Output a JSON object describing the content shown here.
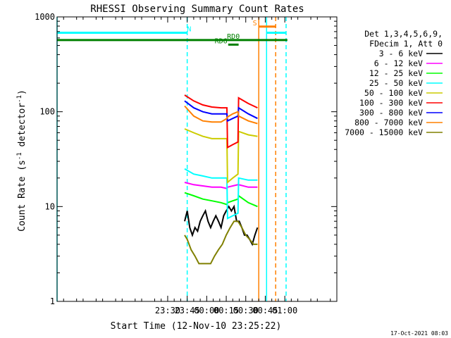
{
  "chart_data": {
    "type": "line",
    "title": "RHESSI Observing Summary Count Rates",
    "xlabel": "Start Time (12-Nov-10 23:25:22)",
    "ylabel": "Count Rate (s-1 detector-1)",
    "ylabel_parts": [
      "Count Rate (s",
      "-1",
      " detector",
      "-1",
      ")"
    ],
    "y_scale": "log",
    "ylim": [
      1,
      1000
    ],
    "xlim_minutes": [
      -115,
      100
    ],
    "y_ticks": [
      {
        "value": 1,
        "label": "1"
      },
      {
        "value": 10,
        "label": "10"
      },
      {
        "value": 100,
        "label": "100"
      },
      {
        "value": 1000,
        "label": "1000"
      }
    ],
    "x_ticks": [
      {
        "minutes": -30,
        "label": "23:30"
      },
      {
        "minutes": -15,
        "label": "23:45"
      },
      {
        "minutes": 0,
        "label": "00:00"
      },
      {
        "minutes": 15,
        "label": "00:15"
      },
      {
        "minutes": 30,
        "label": "00:30"
      },
      {
        "minutes": 45,
        "label": "00:45"
      },
      {
        "minutes": 60,
        "label": "01:00"
      }
    ],
    "legend": {
      "placement": "right",
      "header": [
        "Det 1,3,4,5,6,9,",
        "FDecim 1, Att 0"
      ]
    },
    "series": [
      {
        "name": "3 - 6 keV",
        "color": "#000000",
        "x": [
          -17,
          -15,
          -13,
          -11,
          -9,
          -7,
          -5,
          -3,
          -1,
          1,
          3,
          5,
          7,
          9,
          11,
          13,
          15,
          17,
          19,
          21,
          23,
          25,
          27,
          29,
          31,
          33,
          35,
          37,
          39
        ],
        "y": [
          7.0,
          9.0,
          6.0,
          5.0,
          6.0,
          5.5,
          7.0,
          8.0,
          9.0,
          7.0,
          6.0,
          7.0,
          8.0,
          7.0,
          6.0,
          8.0,
          9.0,
          10.0,
          9.0,
          10.0,
          7.0,
          7.0,
          6.0,
          5.0,
          5.0,
          4.5,
          4.0,
          5.0,
          6.0
        ]
      },
      {
        "name": "6 - 12 keV",
        "color": "#ff00ff",
        "x": [
          -17,
          -10,
          -3,
          4,
          11,
          15.5,
          16,
          20,
          24,
          24.5,
          32,
          39
        ],
        "y": [
          18.0,
          17.0,
          16.5,
          16.0,
          16.0,
          15.5,
          16.0,
          16.5,
          17.0,
          17.0,
          16.0,
          16.0
        ]
      },
      {
        "name": "12 - 25 keV",
        "color": "#00ff00",
        "x": [
          -17,
          -10,
          -3,
          4,
          11,
          15.5,
          16,
          20,
          24,
          24.5,
          32,
          39
        ],
        "y": [
          14.0,
          13.0,
          12.0,
          11.5,
          11.0,
          10.5,
          11.0,
          11.5,
          12.0,
          13.0,
          11.0,
          10.0
        ]
      },
      {
        "name": "25 - 50 keV",
        "color": "#00ffff",
        "x": [
          -17,
          -10,
          -3,
          4,
          11,
          15.5,
          16,
          20,
          24,
          24.5,
          32,
          39
        ],
        "y": [
          25.0,
          22.0,
          21.0,
          20.0,
          20.0,
          20.0,
          7.5,
          8.0,
          8.5,
          20.0,
          19.0,
          19.0
        ]
      },
      {
        "name": "50 - 100 keV",
        "color": "#cccc00",
        "x": [
          -17,
          -10,
          -3,
          4,
          11,
          15.5,
          16,
          20,
          24,
          24.5,
          32,
          39
        ],
        "y": [
          66.0,
          60.0,
          55.0,
          52.0,
          52.0,
          52.0,
          18.0,
          20.0,
          22.0,
          62.0,
          57.0,
          55.0
        ]
      },
      {
        "name": "100 - 300 keV",
        "color": "#ff0000",
        "x": [
          -17,
          -10,
          -3,
          4,
          11,
          15.5,
          16,
          20,
          24,
          24.5,
          32,
          39
        ],
        "y": [
          150.0,
          130.0,
          118.0,
          112.0,
          110.0,
          110.0,
          42.0,
          45.0,
          48.0,
          140.0,
          122.0,
          110.0
        ]
      },
      {
        "name": "300 - 800 keV",
        "color": "#0000ff",
        "x": [
          -17,
          -10,
          -3,
          4,
          11,
          15.5,
          16,
          20,
          24,
          24.5,
          32,
          39
        ],
        "y": [
          130.0,
          110.0,
          100.0,
          95.0,
          95.0,
          95.0,
          80.0,
          85.0,
          90.0,
          110.0,
          95.0,
          85.0
        ]
      },
      {
        "name": "800 - 7000 keV",
        "color": "#ff8000",
        "x": [
          -17,
          -10,
          -3,
          4,
          11,
          15.5,
          16,
          20,
          24,
          24.5,
          32,
          39
        ],
        "y": [
          115.0,
          90.0,
          80.0,
          78.0,
          78.0,
          85.0,
          88.0,
          95.0,
          100.0,
          90.0,
          80.0,
          75.0
        ]
      },
      {
        "name": "7000 - 15000 keV",
        "color": "#808000",
        "x": [
          -17,
          -15,
          -12,
          -9,
          -6,
          -3,
          0,
          3,
          6,
          9,
          12,
          15,
          18,
          21,
          24,
          27,
          30,
          33,
          36,
          39
        ],
        "y": [
          5.0,
          4.5,
          3.5,
          3.0,
          2.5,
          2.5,
          2.5,
          2.5,
          3.0,
          3.5,
          4.0,
          5.0,
          6.0,
          7.0,
          7.0,
          6.0,
          5.0,
          4.5,
          4.0,
          4.0
        ]
      }
    ],
    "vertical_lines": [
      {
        "minutes": -115,
        "color": "#00ffff",
        "style": "solid"
      },
      {
        "minutes": -15,
        "color": "#00ffff",
        "style": "dashed"
      },
      {
        "minutes": 40,
        "color": "#ff8000",
        "style": "solid"
      },
      {
        "minutes": 46,
        "color": "#00ffff",
        "style": "solid"
      },
      {
        "minutes": 53,
        "color": "#ff8000",
        "style": "dashed"
      },
      {
        "minutes": 61,
        "color": "#00ffff",
        "style": "dashed"
      }
    ],
    "top_bars": [
      {
        "label": "N",
        "color": "#00ffff",
        "y": 680,
        "segments": [
          [
            -115,
            -15
          ],
          [
            46,
            61
          ]
        ],
        "label_at": -13.5
      },
      {
        "label": "S",
        "color": "#ff8000",
        "y": 790,
        "segments": [
          [
            40,
            53
          ]
        ],
        "label_at": 37
      },
      {
        "label": "RD0",
        "color": "#008000",
        "y": 570,
        "segments": [
          [
            -115,
            61
          ],
          [
            61,
            62
          ]
        ],
        "label_at": 20.5
      },
      {
        "label": "RD6",
        "color": "#008000",
        "y": 510,
        "segments": [
          [
            16.5,
            24.5
          ]
        ],
        "label_at": 11
      }
    ]
  },
  "footer": {
    "date": "17-Oct-2021 08:03"
  }
}
